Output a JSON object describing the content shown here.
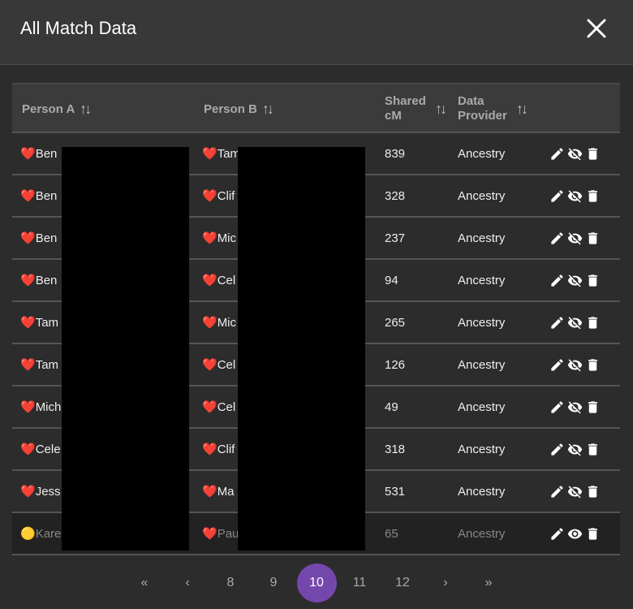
{
  "title": "All Match Data",
  "columns": {
    "person_a": "Person A",
    "person_b": "Person B",
    "shared_cm": "Shared cM",
    "provider": "Data Provider"
  },
  "rows": [
    {
      "a_icon": "❤️",
      "a": "Ben",
      "b_icon": "❤️",
      "b": "Tam",
      "cm": "839",
      "provider": "Ancestry",
      "hidden": true
    },
    {
      "a_icon": "❤️",
      "a": "Ben",
      "b_icon": "❤️",
      "b": "Clif",
      "cm": "328",
      "provider": "Ancestry",
      "hidden": true
    },
    {
      "a_icon": "❤️",
      "a": "Ben",
      "b_icon": "❤️",
      "b": "Mic",
      "cm": "237",
      "provider": "Ancestry",
      "hidden": true
    },
    {
      "a_icon": "❤️",
      "a": "Ben",
      "b_icon": "❤️",
      "b": "Cel",
      "cm": "94",
      "provider": "Ancestry",
      "hidden": true
    },
    {
      "a_icon": "❤️",
      "a": "Tam",
      "b_icon": "❤️",
      "b": "Mic",
      "cm": "265",
      "provider": "Ancestry",
      "hidden": true
    },
    {
      "a_icon": "❤️",
      "a": "Tam",
      "b_icon": "❤️",
      "b": "Cel",
      "cm": "126",
      "provider": "Ancestry",
      "hidden": true
    },
    {
      "a_icon": "❤️",
      "a": "Mich",
      "b_icon": "❤️",
      "b": "Cel",
      "cm": "49",
      "provider": "Ancestry",
      "hidden": true
    },
    {
      "a_icon": "❤️",
      "a": "Cele",
      "b_icon": "❤️",
      "b": "Clif",
      "cm": "318",
      "provider": "Ancestry",
      "hidden": true
    },
    {
      "a_icon": "❤️",
      "a": "Jess",
      "b_icon": "❤️",
      "b": "Ma",
      "cm": "531",
      "provider": "Ancestry",
      "hidden": true
    },
    {
      "a_icon": "🟡",
      "a": "Kare",
      "b_icon": "❤️",
      "b": "Pau",
      "cm": "65",
      "provider": "Ancestry",
      "hidden": false
    }
  ],
  "pagination": {
    "first": "«",
    "prev": "‹",
    "pages": [
      "8",
      "9",
      "10",
      "11",
      "12"
    ],
    "current": "10",
    "next": "›",
    "last": "»"
  },
  "colors": {
    "accent": "#7447ad"
  }
}
